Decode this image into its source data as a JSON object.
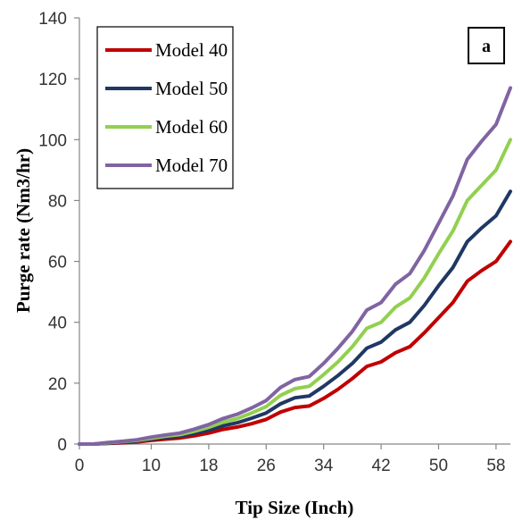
{
  "chart_data": {
    "type": "line",
    "title": "",
    "panel_label": "a",
    "xlabel": "Tip Size (Inch)",
    "ylabel": "Purge rate (Nm3/hr)",
    "xlim": [
      0,
      60
    ],
    "ylim": [
      0,
      140
    ],
    "x_ticks": [
      0,
      10,
      18,
      26,
      34,
      42,
      50,
      58
    ],
    "y_ticks": [
      0,
      20,
      40,
      60,
      80,
      100,
      120,
      140
    ],
    "grid": false,
    "legend_position": "top-left",
    "x": [
      0,
      2,
      4,
      6,
      8,
      10,
      12,
      14,
      16,
      18,
      20,
      22,
      24,
      26,
      28,
      30,
      32,
      34,
      36,
      38,
      40,
      42,
      44,
      46,
      48,
      50,
      52,
      54,
      56,
      58,
      60
    ],
    "series": [
      {
        "name": "Model 40",
        "color": "#c00000",
        "values": [
          0,
          0,
          0.2,
          0.4,
          0.7,
          1.2,
          1.6,
          2.0,
          2.7,
          3.6,
          4.8,
          5.6,
          6.7,
          8.1,
          10.5,
          12.0,
          12.5,
          15.0,
          18.0,
          21.5,
          25.5,
          27.0,
          30.0,
          32.0,
          36.5,
          41.5,
          46.5,
          53.5,
          57.0,
          60.0,
          66.5
        ]
      },
      {
        "name": "Model 50",
        "color": "#1f3864",
        "values": [
          0,
          0,
          0.3,
          0.6,
          1.0,
          1.6,
          2.1,
          2.6,
          3.5,
          4.6,
          6.0,
          7.0,
          8.5,
          10.2,
          13.2,
          15.2,
          15.8,
          19.0,
          22.5,
          26.5,
          31.5,
          33.5,
          37.5,
          40.0,
          45.5,
          52.0,
          58.0,
          66.5,
          71.0,
          75.0,
          83.0
        ]
      },
      {
        "name": "Model 60",
        "color": "#92d050",
        "values": [
          0,
          0,
          0.4,
          0.8,
          1.2,
          1.9,
          2.6,
          3.1,
          4.2,
          5.5,
          7.2,
          8.4,
          10.2,
          12.3,
          16.0,
          18.2,
          19.0,
          22.8,
          27.0,
          32.0,
          38.0,
          40.0,
          45.0,
          48.0,
          54.5,
          62.5,
          70.0,
          80.0,
          85.0,
          90.0,
          100.0
        ]
      },
      {
        "name": "Model 70",
        "color": "#8064a2",
        "values": [
          0,
          0,
          0.5,
          0.9,
          1.4,
          2.3,
          3.0,
          3.6,
          4.9,
          6.4,
          8.4,
          9.8,
          11.9,
          14.3,
          18.6,
          21.2,
          22.2,
          26.5,
          31.5,
          37.0,
          44.0,
          46.5,
          52.5,
          56.0,
          63.5,
          72.5,
          81.5,
          93.5,
          99.5,
          105.0,
          117.0
        ]
      }
    ]
  }
}
